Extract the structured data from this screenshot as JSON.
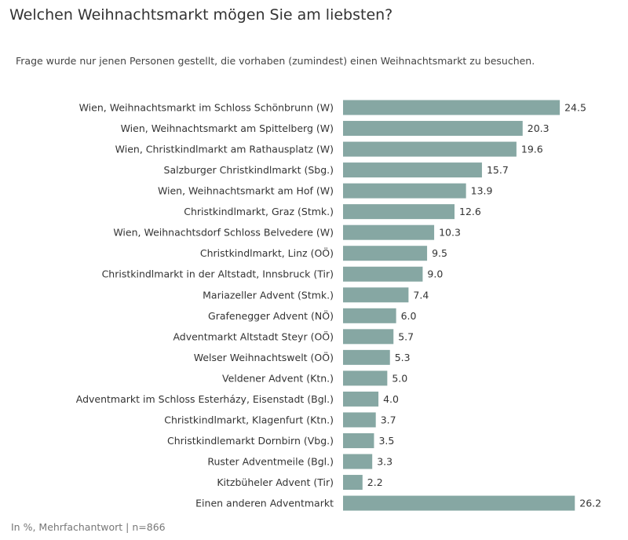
{
  "chart_data": {
    "type": "bar",
    "orientation": "horizontal",
    "title": "Welchen Weihnachtsmarkt mögen Sie am liebsten?",
    "subtitle": "Frage wurde nur jenen Personen gestellt, die vorhaben (zumindest) einen Weihnachtsmarkt zu besuchen.",
    "note": "In %, Mehrfachantwort | n=866",
    "bar_color": "#86a7a3",
    "grid": false,
    "categories": [
      "Wien, Weihnachtsmarkt im Schloss Schönbrunn (W)",
      "Wien, Weihnachtsmarkt am Spittelberg (W)",
      "Wien, Christkindlmarkt am Rathausplatz (W)",
      "Salzburger Christkindlmarkt (Sbg.)",
      "Wien, Weihnachtsmarkt am Hof (W)",
      "Christkindlmarkt, Graz (Stmk.)",
      "Wien, Weihnachtsdorf Schloss Belvedere (W)",
      "Christkindlmarkt, Linz (OÖ)",
      "Christkindlmarkt in der Altstadt, Innsbruck (Tir)",
      "Mariazeller Advent (Stmk.)",
      "Grafenegger Advent (NÖ)",
      "Adventmarkt Altstadt Steyr (OÖ)",
      "Welser Weihnachtswelt (OÖ)",
      "Veldener Advent (Ktn.)",
      "Adventmarkt im Schloss Esterházy, Eisenstadt (Bgl.)",
      "Christkindlmarkt, Klagenfurt (Ktn.)",
      "Christkindlemarkt Dornbirn (Vbg.)",
      "Ruster Adventmeile (Bgl.)",
      "Kitzbüheler Advent (Tir)",
      "Einen anderen Adventmarkt"
    ],
    "values": [
      24.5,
      20.3,
      19.6,
      15.7,
      13.9,
      12.6,
      10.3,
      9.5,
      9.0,
      7.4,
      6.0,
      5.7,
      5.3,
      5.0,
      4.0,
      3.7,
      3.5,
      3.3,
      2.2,
      26.2
    ],
    "value_labels": [
      "24.5",
      "20.3",
      "19.6",
      "15.7",
      "13.9",
      "12.6",
      "10.3",
      "9.5",
      "9.0",
      "7.4",
      "6.0",
      "5.7",
      "5.3",
      "5.0",
      "4.0",
      "3.7",
      "3.5",
      "3.3",
      "2.2",
      "26.2"
    ]
  }
}
